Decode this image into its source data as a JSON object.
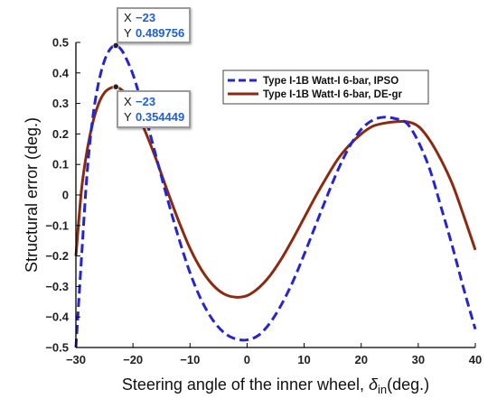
{
  "chart_data": {
    "type": "line",
    "xlabel": "Steering angle of the inner wheel, ",
    "xlabel_symbol": "δ",
    "xlabel_sub": "in",
    "xlabel_unit": "(deg.)",
    "ylabel": "Structural error (deg.)",
    "xlim": [
      -30,
      40
    ],
    "ylim": [
      -0.5,
      0.5
    ],
    "xticks": [
      "−30",
      "−20",
      "−10",
      "0",
      "10",
      "20",
      "30",
      "40"
    ],
    "yticks": [
      "−0.5",
      "−0.4",
      "−0.3",
      "−0.2",
      "−0.1",
      "0",
      "0.1",
      "0.2",
      "0.3",
      "0.4",
      "0.5"
    ],
    "legend_position": "top-right",
    "grid": false,
    "series": [
      {
        "name": "Type I-1B Watt-I 6-bar, IPSO",
        "color": "#2525d0",
        "style": "dashed",
        "x": [
          -30,
          -29,
          -28,
          -27,
          -26,
          -25,
          -24,
          -23,
          -22,
          -21,
          -20,
          -19,
          -18,
          -16,
          -14,
          -12,
          -10,
          -8,
          -6,
          -4,
          -2,
          0,
          2,
          4,
          6,
          8,
          10,
          12,
          14,
          16,
          18,
          20,
          22,
          24,
          26,
          28,
          30,
          32,
          34,
          36,
          38,
          40
        ],
        "y": [
          -0.5,
          -0.2,
          0.08,
          0.26,
          0.37,
          0.44,
          0.478,
          0.49,
          0.475,
          0.44,
          0.395,
          0.335,
          0.27,
          0.13,
          -0.01,
          -0.14,
          -0.255,
          -0.345,
          -0.41,
          -0.452,
          -0.472,
          -0.475,
          -0.46,
          -0.42,
          -0.36,
          -0.285,
          -0.195,
          -0.1,
          -0.005,
          0.085,
          0.16,
          0.215,
          0.245,
          0.255,
          0.25,
          0.235,
          0.175,
          0.085,
          -0.04,
          -0.17,
          -0.31,
          -0.44
        ]
      },
      {
        "name": "Type I-1B Watt-I 6-bar, DE-gr",
        "color": "#8b2a10",
        "style": "solid",
        "x": [
          -30,
          -29,
          -28,
          -27,
          -26,
          -25,
          -24,
          -23,
          -22,
          -21,
          -20,
          -18,
          -16,
          -14,
          -12,
          -10,
          -8,
          -6,
          -4,
          -2,
          0,
          2,
          4,
          6,
          8,
          10,
          12,
          14,
          16,
          18,
          20,
          22,
          24,
          26,
          28,
          30,
          32,
          34,
          36,
          38,
          40
        ],
        "y": [
          -0.2,
          0.02,
          0.15,
          0.24,
          0.3,
          0.335,
          0.35,
          0.354,
          0.345,
          0.325,
          0.295,
          0.215,
          0.12,
          0.015,
          -0.085,
          -0.175,
          -0.245,
          -0.295,
          -0.325,
          -0.335,
          -0.33,
          -0.305,
          -0.265,
          -0.21,
          -0.145,
          -0.075,
          -0.005,
          0.06,
          0.12,
          0.165,
          0.2,
          0.225,
          0.235,
          0.24,
          0.24,
          0.225,
          0.18,
          0.115,
          0.035,
          -0.07,
          -0.18
        ]
      }
    ],
    "datatips": [
      {
        "x_key": "X",
        "x_value": "−23",
        "y_key": "Y",
        "y_value": "0.489756",
        "x": -23,
        "y": 0.489756
      },
      {
        "x_key": "X",
        "x_value": "−23",
        "y_key": "Y",
        "y_value": "0.354449",
        "x": -23,
        "y": 0.354449
      }
    ]
  }
}
